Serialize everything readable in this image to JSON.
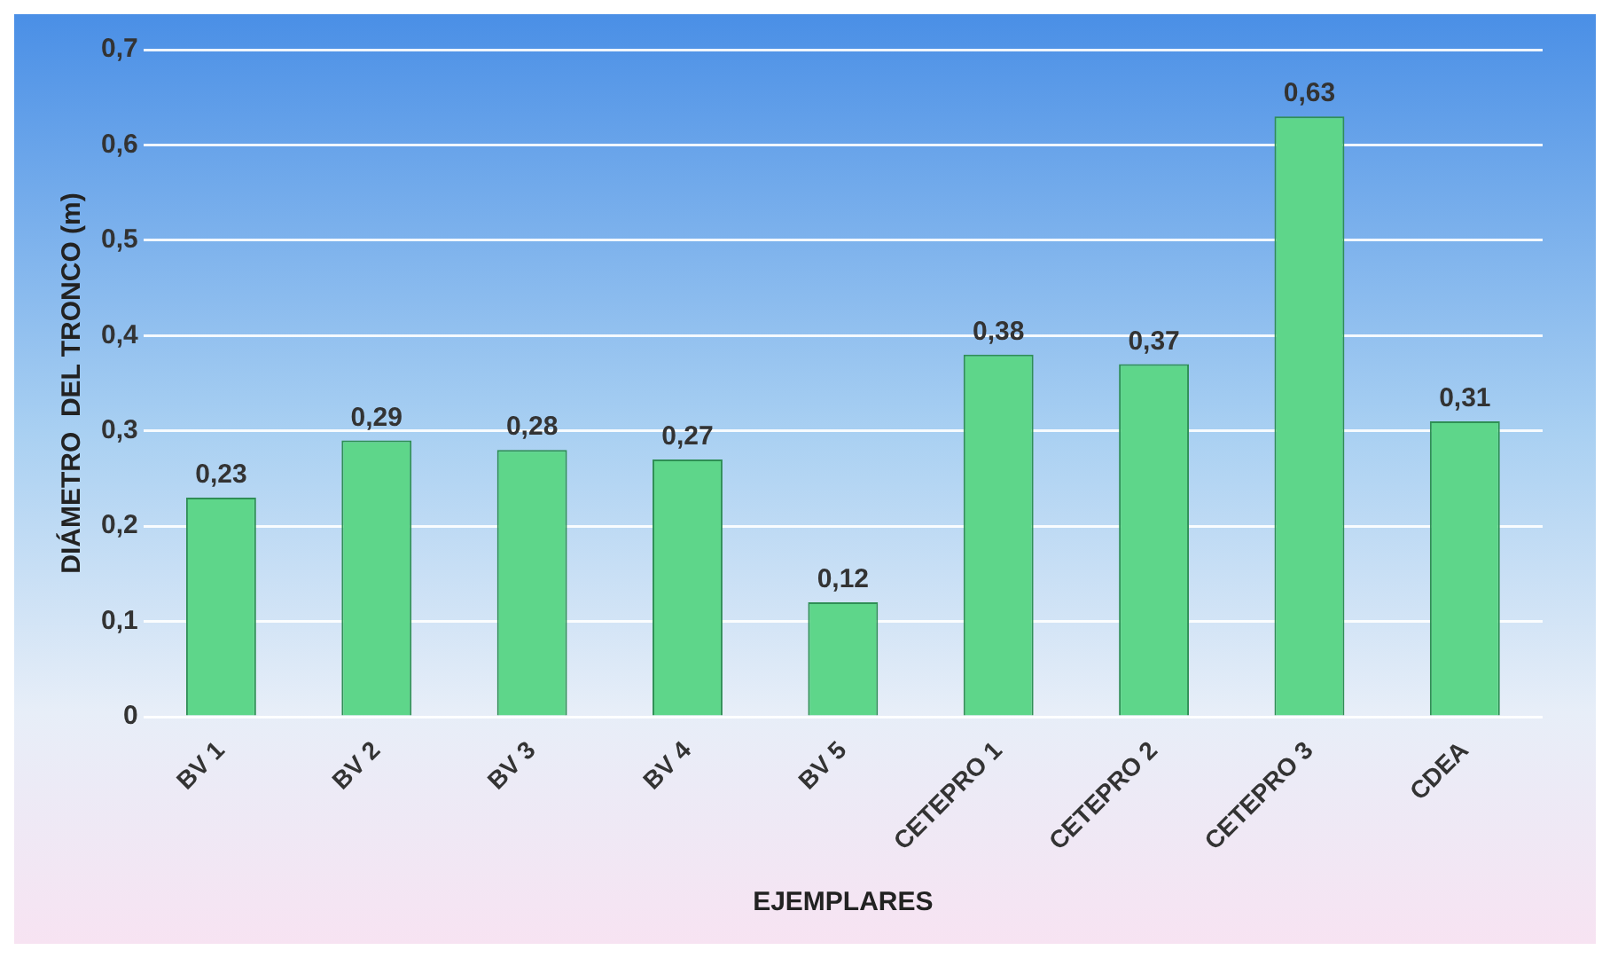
{
  "chart_data": {
    "type": "bar",
    "xlabel": "EJEMPLARES",
    "ylabel": "DIÁMETRO  DEL TRONCO (m)",
    "categories": [
      "BV 1",
      "BV 2",
      "BV 3",
      "BV 4",
      "BV 5",
      "CETEPRO 1",
      "CETEPRO 2",
      "CETEPRO 3",
      "CDEA"
    ],
    "values": [
      0.23,
      0.29,
      0.28,
      0.27,
      0.12,
      0.38,
      0.37,
      0.63,
      0.31
    ],
    "value_labels": [
      "0,23",
      "0,29",
      "0,28",
      "0,27",
      "0,12",
      "0,38",
      "0,37",
      "0,63",
      "0,31"
    ],
    "color": "#5ed68a",
    "ylim": [
      0,
      0.7
    ],
    "yticks": [
      0,
      {
        "value": 0.1,
        "label": "0,1"
      },
      {
        "value": 0.2,
        "label": "0,2"
      },
      {
        "value": 0.3,
        "label": "0,3"
      },
      {
        "value": 0.4,
        "label": "0,4"
      },
      {
        "value": 0.5,
        "label": "0,5"
      },
      {
        "value": 0.6,
        "label": "0,6"
      },
      {
        "value": 0.7,
        "label": "0,7"
      }
    ],
    "grid": "y",
    "legend": false
  }
}
